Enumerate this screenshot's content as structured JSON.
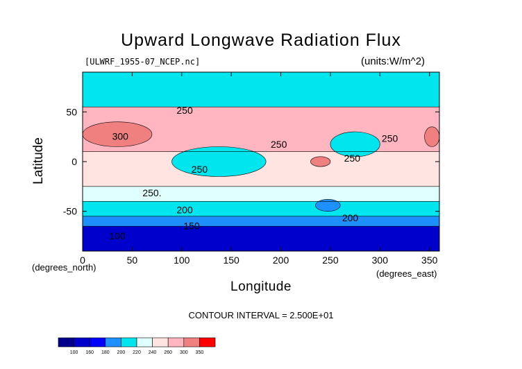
{
  "title": "Upward Longwave Radiation Flux",
  "file_label": "[ULWRF_1955-07_NCEP.nc]",
  "units_label": "(units:W/m^2)",
  "contour_interval": "CONTOUR INTERVAL = 2.500E+01",
  "chart_data": {
    "type": "heatmap",
    "xlabel": "Longitude",
    "ylabel": "Latitude",
    "x_unit": "(degrees_east)",
    "y_unit": "(degrees_north)",
    "xlim": [
      0,
      360
    ],
    "ylim": [
      -90,
      90
    ],
    "x_ticks": [
      0,
      50,
      100,
      150,
      200,
      250,
      300,
      350
    ],
    "y_ticks": [
      50,
      0,
      -50
    ],
    "contour_labels": [
      {
        "text": "250",
        "lon": 103,
        "lat": 48
      },
      {
        "text": "300",
        "lon": 38,
        "lat": 22
      },
      {
        "text": "250",
        "lon": 198,
        "lat": 14
      },
      {
        "text": "250",
        "lon": 310,
        "lat": 20
      },
      {
        "text": "250",
        "lon": 272,
        "lat": 0
      },
      {
        "text": "250",
        "lon": 118,
        "lat": -11
      },
      {
        "text": "250.",
        "lon": 70,
        "lat": -35
      },
      {
        "text": "200",
        "lon": 103,
        "lat": -52
      },
      {
        "text": "150",
        "lon": 110,
        "lat": -68
      },
      {
        "text": "100",
        "lon": 35,
        "lat": -78
      },
      {
        "text": "200",
        "lon": 270,
        "lat": -60
      }
    ],
    "colorbar": {
      "levels": [
        100,
        160,
        180,
        200,
        220,
        240,
        260,
        300,
        350
      ],
      "colors": [
        "#00008b",
        "#0000cd",
        "#0000ff",
        "#1e90ff",
        "#00e5ee",
        "#e0ffff",
        "#ffe4e1",
        "#ffb6c1",
        "#f08080",
        "#ff0000"
      ]
    },
    "bands": [
      {
        "lat_min": 55,
        "lat_max": 90,
        "value": 215
      },
      {
        "lat_min": 10,
        "lat_max": 55,
        "value": 275
      },
      {
        "lat_min": -25,
        "lat_max": 10,
        "value": 250
      },
      {
        "lat_min": -40,
        "lat_max": -25,
        "value": 235
      },
      {
        "lat_min": -55,
        "lat_max": -40,
        "value": 210
      },
      {
        "lat_min": -65,
        "lat_max": -55,
        "value": 190
      },
      {
        "lat_min": -90,
        "lat_max": -65,
        "value": 150
      }
    ],
    "features": [
      {
        "lon_min": 0,
        "lon_max": 70,
        "lat_min": 15,
        "lat_max": 40,
        "value": 310
      },
      {
        "lon_min": 345,
        "lon_max": 360,
        "lat_min": 15,
        "lat_max": 35,
        "value": 310
      },
      {
        "lon_min": 230,
        "lon_max": 250,
        "lat_min": -5,
        "lat_max": 5,
        "value": 310
      },
      {
        "lon_min": 90,
        "lon_max": 185,
        "lat_min": -15,
        "lat_max": 15,
        "value": 210
      },
      {
        "lon_min": 250,
        "lon_max": 300,
        "lat_min": 5,
        "lat_max": 30,
        "value": 210
      },
      {
        "lon_min": 235,
        "lon_max": 260,
        "lat_min": -50,
        "lat_max": -38,
        "value": 180
      }
    ]
  }
}
